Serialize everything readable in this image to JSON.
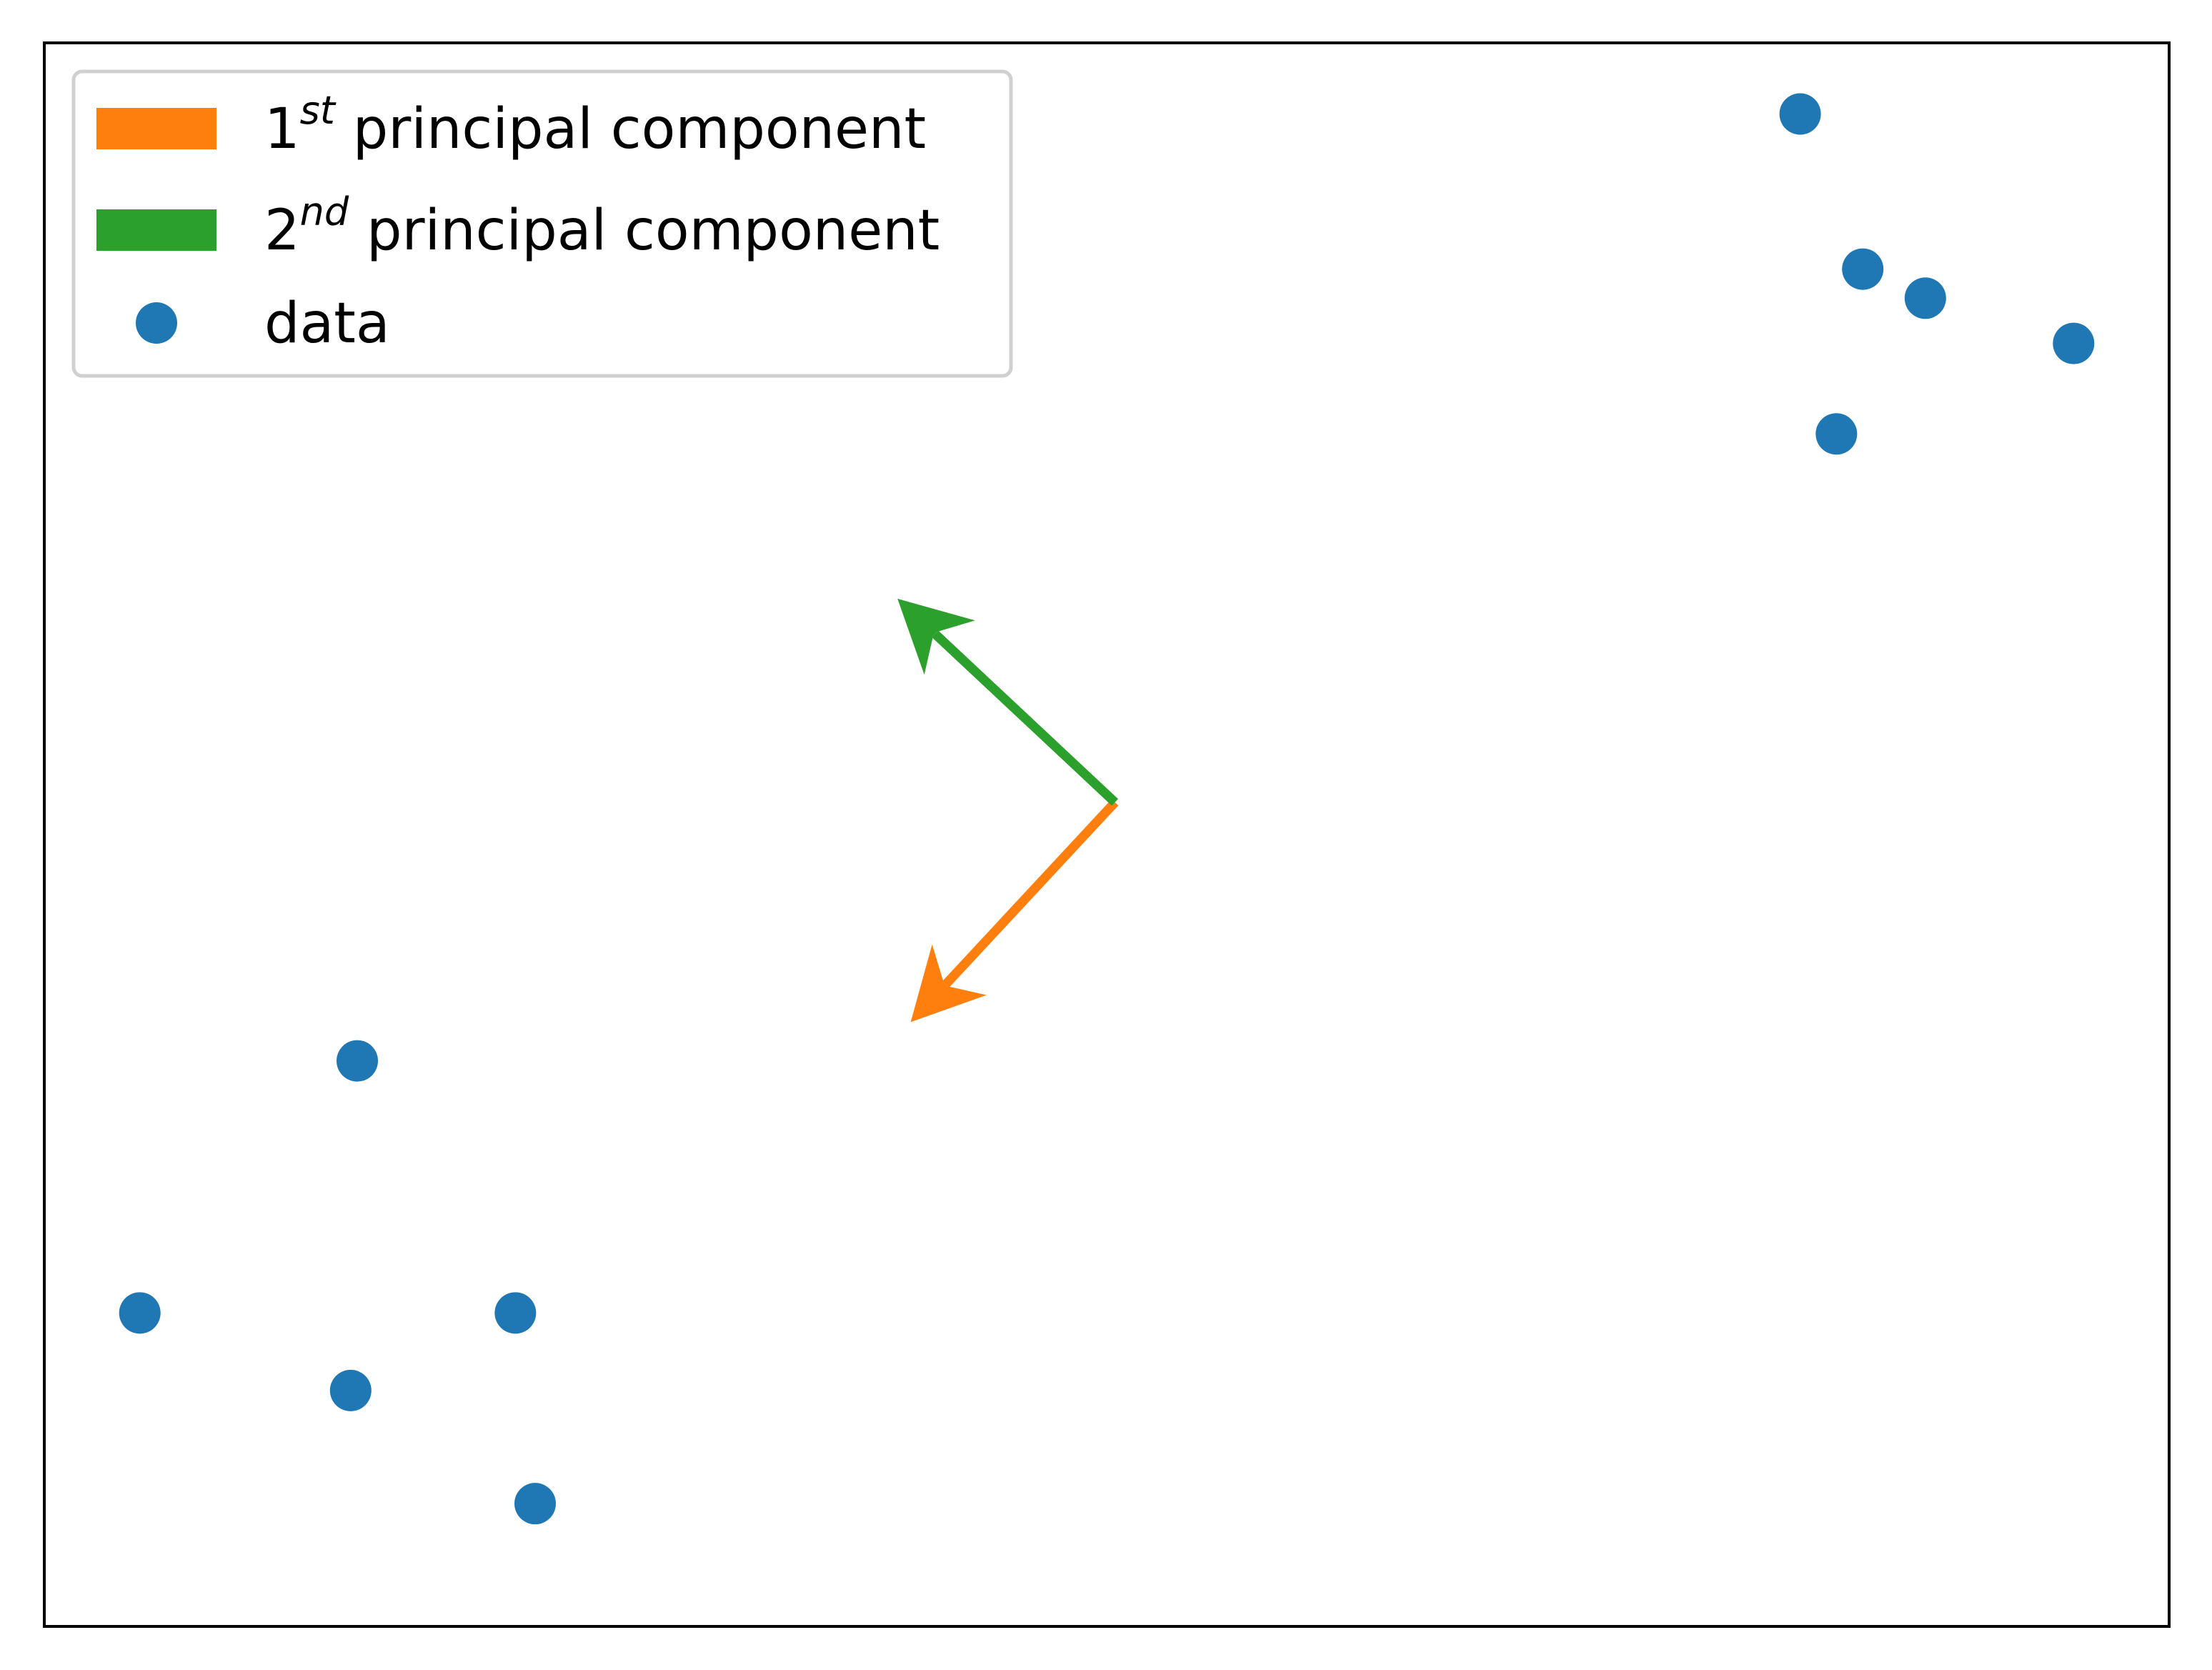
{
  "chart_data": {
    "type": "scatter",
    "title": "",
    "xlabel": "",
    "ylabel": "",
    "xlim": [
      -3.25,
      3.2
    ],
    "ylim": [
      -2.55,
      2.35
    ],
    "grid": false,
    "ticks_visible": false,
    "legend_position": "upper left",
    "series": [
      {
        "name": "data",
        "kind": "scatter",
        "color": "#1f77b4",
        "points": [
          {
            "x": -2.3,
            "y": -0.8
          },
          {
            "x": -2.96,
            "y": -1.58
          },
          {
            "x": -1.82,
            "y": -1.58
          },
          {
            "x": -2.32,
            "y": -1.82
          },
          {
            "x": -1.76,
            "y": -2.17
          },
          {
            "x": 2.08,
            "y": 2.13
          },
          {
            "x": 2.27,
            "y": 1.65
          },
          {
            "x": 2.46,
            "y": 1.56
          },
          {
            "x": 2.91,
            "y": 1.42
          },
          {
            "x": 2.19,
            "y": 1.14
          }
        ]
      }
    ],
    "arrows": [
      {
        "name": "1st principal component",
        "legend_main": "1",
        "legend_sup": "st",
        "legend_rest": " principal component",
        "color": "#ff7f0e",
        "origin": {
          "x": 0.0,
          "y": 0.0
        },
        "vector": {
          "x": -0.62,
          "y": -0.68
        }
      },
      {
        "name": "2nd principal component",
        "legend_main": "2",
        "legend_sup": "nd",
        "legend_rest": " principal component",
        "color": "#2ca02c",
        "origin": {
          "x": 0.0,
          "y": 0.0
        },
        "vector": {
          "x": -0.66,
          "y": 0.63
        }
      }
    ],
    "legend": [
      {
        "label_main": "1",
        "label_sup": "st",
        "label_rest": " principal component",
        "color": "#ff7f0e",
        "marker": "patch"
      },
      {
        "label_main": "2",
        "label_sup": "nd",
        "label_rest": " principal component",
        "color": "#2ca02c",
        "marker": "patch"
      },
      {
        "label_main": "data",
        "label_sup": "",
        "label_rest": "",
        "color": "#1f77b4",
        "marker": "dot"
      }
    ]
  }
}
